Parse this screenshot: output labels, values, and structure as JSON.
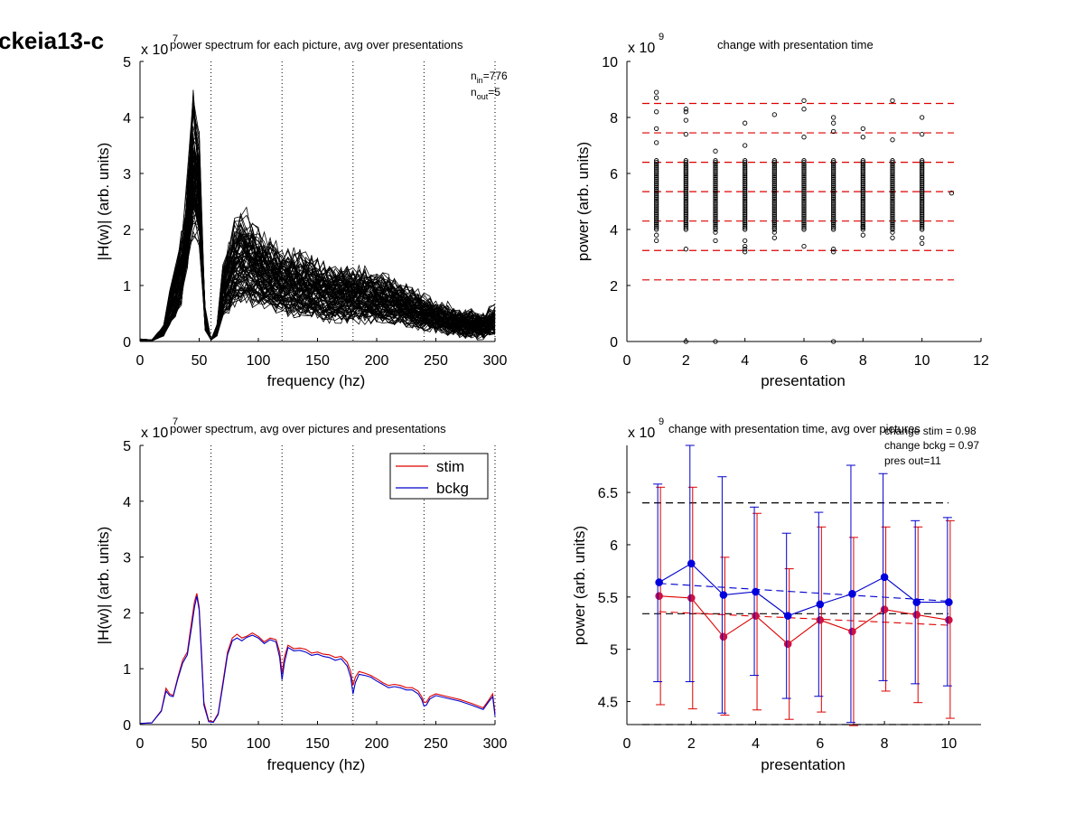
{
  "figure": {
    "label": "ckeia13-c"
  },
  "charts": {
    "tl": {
      "type": "line",
      "title": "power spectrum for each picture, avg over presentations",
      "xlabel": "frequency (hz)",
      "ylabel": "|H(w)| (arb. units)",
      "xlim": [
        0,
        300
      ],
      "ylim": [
        0,
        5
      ],
      "xticks": [
        "0",
        "50",
        "100",
        "150",
        "200",
        "250",
        "300"
      ],
      "yticks": [
        "0",
        "1",
        "2",
        "3",
        "4",
        "5"
      ],
      "exponent_base": "x 10",
      "exponent": "7",
      "vlines": [
        60,
        120,
        180,
        240,
        300
      ],
      "annotation": {
        "n": "n",
        "in_sub": "in",
        "in_val": "=776",
        "out_sub": "out",
        "out_val": "=5"
      },
      "series_count": 776,
      "envelope": {
        "x": [
          0,
          10,
          20,
          25,
          30,
          35,
          40,
          45,
          48,
          50,
          55,
          60,
          65,
          70,
          80,
          90,
          100,
          110,
          120,
          130,
          140,
          150,
          160,
          170,
          180,
          190,
          200,
          210,
          220,
          230,
          240,
          250,
          260,
          270,
          280,
          290,
          300
        ],
        "mean": [
          0.03,
          0.02,
          0.2,
          0.6,
          0.9,
          1.3,
          2.0,
          3.0,
          3.4,
          2.6,
          0.4,
          0.03,
          0.2,
          0.9,
          1.4,
          1.5,
          1.35,
          1.2,
          1.1,
          1.05,
          1.0,
          0.95,
          0.9,
          0.88,
          0.85,
          0.85,
          0.8,
          0.75,
          0.7,
          0.62,
          0.52,
          0.45,
          0.4,
          0.35,
          0.32,
          0.28,
          0.4
        ]
      }
    },
    "tr": {
      "type": "scatter",
      "title": "change with presentation time",
      "xlabel": "presentation",
      "ylabel": "power (arb. units)",
      "xlim": [
        0,
        12
      ],
      "ylim": [
        0,
        10
      ],
      "xticks": [
        "0",
        "2",
        "4",
        "6",
        "8",
        "10",
        "12"
      ],
      "yticks": [
        "0",
        "2",
        "4",
        "6",
        "8",
        "10"
      ],
      "exponent_base": "x 10",
      "exponent": "9",
      "hlines": [
        2.2,
        3.25,
        4.3,
        5.35,
        6.4,
        7.45,
        8.5
      ],
      "hline_color": "#dd0000",
      "dense_band": {
        "lo": 4.0,
        "hi": 6.5
      },
      "outliers": [
        [
          1,
          8.9
        ],
        [
          1,
          8.7
        ],
        [
          1,
          8.2
        ],
        [
          1,
          7.6
        ],
        [
          1,
          7.1
        ],
        [
          1,
          3.8
        ],
        [
          1,
          3.6
        ],
        [
          2,
          8.3
        ],
        [
          2,
          8.2
        ],
        [
          2,
          7.9
        ],
        [
          2,
          7.4
        ],
        [
          2,
          3.3
        ],
        [
          2,
          0.0
        ],
        [
          3,
          6.8
        ],
        [
          3,
          3.9
        ],
        [
          3,
          3.6
        ],
        [
          3,
          0.0
        ],
        [
          4,
          7.8
        ],
        [
          4,
          7.0
        ],
        [
          4,
          3.6
        ],
        [
          4,
          3.4
        ],
        [
          4,
          3.3
        ],
        [
          4,
          3.2
        ],
        [
          5,
          8.1
        ],
        [
          5,
          3.9
        ],
        [
          5,
          3.7
        ],
        [
          6,
          8.6
        ],
        [
          6,
          8.3
        ],
        [
          6,
          7.3
        ],
        [
          6,
          3.4
        ],
        [
          7,
          8.0
        ],
        [
          7,
          7.8
        ],
        [
          7,
          7.5
        ],
        [
          7,
          3.3
        ],
        [
          7,
          3.2
        ],
        [
          7,
          0.0
        ],
        [
          8,
          7.6
        ],
        [
          8,
          7.3
        ],
        [
          8,
          4.1
        ],
        [
          8,
          3.8
        ],
        [
          9,
          8.6
        ],
        [
          9,
          7.2
        ],
        [
          9,
          3.9
        ],
        [
          9,
          3.7
        ],
        [
          10,
          8.0
        ],
        [
          10,
          7.4
        ],
        [
          10,
          3.7
        ],
        [
          10,
          3.5
        ],
        [
          11,
          5.3
        ]
      ]
    },
    "bl": {
      "type": "line",
      "title": "power spectrum, avg over pictures and presentations",
      "xlabel": "frequency (hz)",
      "ylabel": "|H(w)| (arb. units)",
      "xlim": [
        0,
        300
      ],
      "ylim": [
        0,
        5
      ],
      "xticks": [
        "0",
        "50",
        "100",
        "150",
        "200",
        "250",
        "300"
      ],
      "yticks": [
        "0",
        "1",
        "2",
        "3",
        "4",
        "5"
      ],
      "exponent_base": "x 10",
      "exponent": "7",
      "vlines": [
        60,
        120,
        180,
        240,
        300
      ],
      "legend": {
        "position": "top-right"
      },
      "x": [
        0,
        10,
        18,
        22,
        25,
        28,
        32,
        36,
        40,
        44,
        46,
        48,
        50,
        52,
        54,
        58,
        62,
        66,
        70,
        74,
        78,
        82,
        86,
        90,
        95,
        100,
        105,
        110,
        115,
        118,
        120,
        122,
        125,
        130,
        135,
        140,
        145,
        150,
        155,
        160,
        165,
        170,
        175,
        178,
        180,
        182,
        185,
        190,
        195,
        200,
        205,
        210,
        215,
        220,
        225,
        230,
        235,
        238,
        240,
        242,
        245,
        250,
        260,
        270,
        280,
        290,
        295,
        298,
        300
      ],
      "series": [
        {
          "name": "stim",
          "color": "#dd0000",
          "values": [
            0.02,
            0.03,
            0.25,
            0.65,
            0.55,
            0.52,
            0.85,
            1.15,
            1.3,
            1.9,
            2.2,
            2.35,
            2.1,
            1.3,
            0.4,
            0.07,
            0.05,
            0.2,
            0.75,
            1.3,
            1.55,
            1.62,
            1.55,
            1.58,
            1.64,
            1.58,
            1.48,
            1.55,
            1.52,
            1.3,
            0.92,
            1.2,
            1.42,
            1.36,
            1.37,
            1.35,
            1.28,
            1.3,
            1.26,
            1.25,
            1.2,
            1.22,
            1.12,
            0.95,
            0.7,
            0.85,
            0.95,
            0.92,
            0.88,
            0.82,
            0.75,
            0.7,
            0.72,
            0.7,
            0.66,
            0.66,
            0.6,
            0.5,
            0.4,
            0.4,
            0.5,
            0.55,
            0.5,
            0.45,
            0.38,
            0.3,
            0.45,
            0.55,
            0.2
          ]
        },
        {
          "name": "bckg",
          "color": "#0000cc",
          "values": [
            0.02,
            0.03,
            0.24,
            0.6,
            0.52,
            0.5,
            0.82,
            1.1,
            1.25,
            1.8,
            2.1,
            2.3,
            2.05,
            1.2,
            0.35,
            0.05,
            0.04,
            0.18,
            0.7,
            1.25,
            1.5,
            1.55,
            1.5,
            1.56,
            1.6,
            1.55,
            1.45,
            1.52,
            1.48,
            1.2,
            0.8,
            1.1,
            1.38,
            1.32,
            1.33,
            1.3,
            1.24,
            1.26,
            1.22,
            1.2,
            1.15,
            1.18,
            1.05,
            0.85,
            0.55,
            0.75,
            0.9,
            0.88,
            0.85,
            0.78,
            0.72,
            0.66,
            0.68,
            0.66,
            0.62,
            0.62,
            0.55,
            0.45,
            0.33,
            0.35,
            0.46,
            0.52,
            0.47,
            0.42,
            0.35,
            0.27,
            0.42,
            0.5,
            0.15
          ]
        }
      ]
    },
    "br": {
      "type": "line",
      "title": "change with presentation time, avg over pictures",
      "xlabel": "presentation",
      "ylabel": "power (arb. units)",
      "xlim": [
        0,
        11
      ],
      "ylim": [
        4.28,
        6.95
      ],
      "xticks": [
        "0",
        "2",
        "4",
        "6",
        "8",
        "10"
      ],
      "xtick_values": [
        0,
        2,
        4,
        6,
        8,
        10
      ],
      "yticks": [
        "4.5",
        "5",
        "5.5",
        "6",
        "6.5"
      ],
      "ytick_values": [
        4.5,
        5,
        5.5,
        6,
        6.5
      ],
      "exponent_base": "x 10",
      "exponent": "9",
      "annotations": [
        "change stim = 0.98",
        "change bckg = 0.97",
        "pres out=11"
      ],
      "hlines_black": [
        6.4,
        5.34,
        4.28
      ],
      "x": [
        1,
        2,
        3,
        4,
        5,
        6,
        7,
        8,
        9,
        10
      ],
      "series": [
        {
          "name": "stim",
          "color": "#dd0000",
          "marker_color": "#cc1144",
          "values": [
            5.51,
            5.49,
            5.12,
            5.32,
            5.05,
            5.28,
            5.17,
            5.38,
            5.33,
            5.28
          ],
          "err_hi": [
            6.55,
            6.55,
            5.88,
            6.3,
            5.77,
            6.17,
            6.07,
            6.17,
            6.17,
            6.23
          ],
          "err_lo": [
            4.47,
            4.43,
            4.37,
            4.42,
            4.33,
            4.4,
            4.27,
            4.6,
            4.49,
            4.34
          ],
          "trend": [
            5.36,
            5.23
          ]
        },
        {
          "name": "bckg",
          "color": "#0000cc",
          "marker_color": "#0000dd",
          "values": [
            5.64,
            5.82,
            5.52,
            5.55,
            5.32,
            5.43,
            5.53,
            5.69,
            5.45,
            5.45
          ],
          "err_hi": [
            6.58,
            6.95,
            6.65,
            6.36,
            6.11,
            6.31,
            6.76,
            6.68,
            6.23,
            6.26
          ],
          "err_lo": [
            4.69,
            4.69,
            4.39,
            4.75,
            4.53,
            4.55,
            4.3,
            4.7,
            4.67,
            4.65
          ],
          "trend": [
            5.63,
            5.46
          ]
        }
      ]
    }
  }
}
